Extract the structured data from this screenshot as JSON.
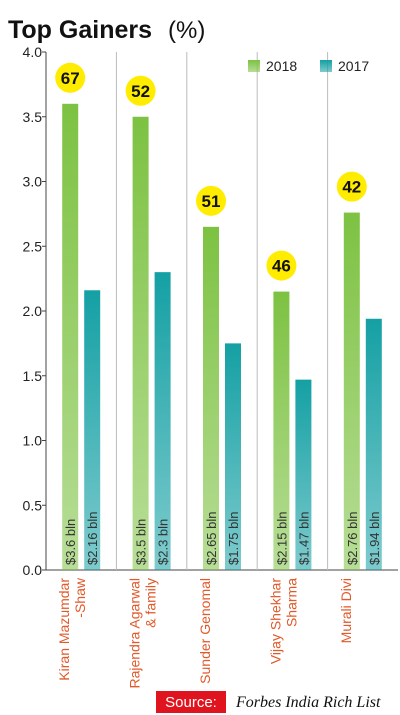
{
  "chart_data": {
    "type": "bar",
    "title": "Top Gainers",
    "unit": "(%)",
    "categories": [
      [
        "Kiran Mazumdar",
        "-Shaw"
      ],
      [
        "Rajendra Agarwal",
        "& family"
      ],
      [
        "Sunder Genomal"
      ],
      [
        "Vijay Shekhar",
        "Sharma"
      ],
      [
        "Murali Divi"
      ]
    ],
    "series": [
      {
        "name": "2018",
        "color": "#7dc242",
        "values": [
          3.6,
          3.5,
          2.65,
          2.15,
          2.76
        ],
        "value_labels": [
          "$3.6 bln",
          "$3.5 bln",
          "$2.65 bln",
          "$2.15 bln",
          "$2.76 bln"
        ]
      },
      {
        "name": "2017",
        "color": "#14a0a4",
        "values": [
          2.16,
          2.3,
          1.75,
          1.47,
          1.94
        ],
        "value_labels": [
          "$2.16 bln",
          "$2.3 bln",
          "$1.75 bln",
          "$1.47 bln",
          "$1.94 bln"
        ]
      }
    ],
    "gains": [
      67,
      52,
      51,
      46,
      42
    ],
    "ylim": [
      0,
      4
    ],
    "yticks": [
      {
        "value": 0,
        "label": "0.0"
      },
      0.5,
      {
        "value": 1,
        "label": "1.0"
      },
      1.5,
      {
        "value": 2,
        "label": "2.0"
      },
      2.5,
      {
        "value": 3,
        "label": "3.0"
      },
      3.5,
      {
        "value": 4,
        "label": "4.0"
      }
    ],
    "legend": "top-right",
    "source_label": "Source:",
    "source": "Forbes India Rich List"
  }
}
